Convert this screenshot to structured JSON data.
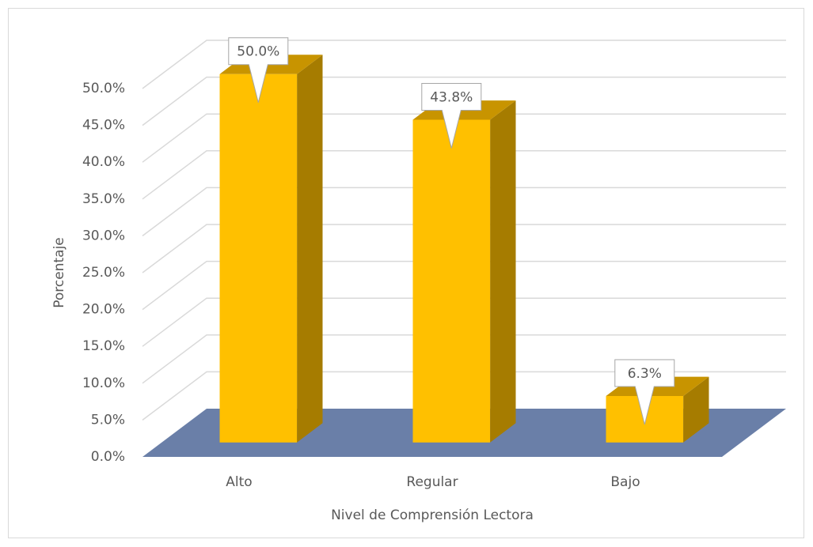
{
  "chart_data": {
    "type": "bar3d",
    "x_label": "Nivel de Comprensión Lectora",
    "y_label": "Porcentaje",
    "categories": [
      "Alto",
      "Regular",
      "Bajo"
    ],
    "values": [
      50.0,
      43.8,
      6.3
    ],
    "value_labels": [
      "50.0%",
      "43.8%",
      "6.3%"
    ],
    "color": "#FFC000",
    "ylim": [
      0,
      50
    ],
    "yticks": [
      {
        "value": 0,
        "label": "0.0%"
      },
      {
        "value": 5,
        "label": "5.0%"
      },
      {
        "value": 10,
        "label": "10.0%"
      },
      {
        "value": 15,
        "label": "15.0%"
      },
      {
        "value": 20,
        "label": "20.0%"
      },
      {
        "value": 25,
        "label": "25.0%"
      },
      {
        "value": 30,
        "label": "30.0%"
      },
      {
        "value": 35,
        "label": "35.0%"
      },
      {
        "value": 40,
        "label": "40.0%"
      },
      {
        "value": 45,
        "label": "45.0%"
      },
      {
        "value": 50,
        "label": "50.0%"
      }
    ],
    "grid": true
  }
}
